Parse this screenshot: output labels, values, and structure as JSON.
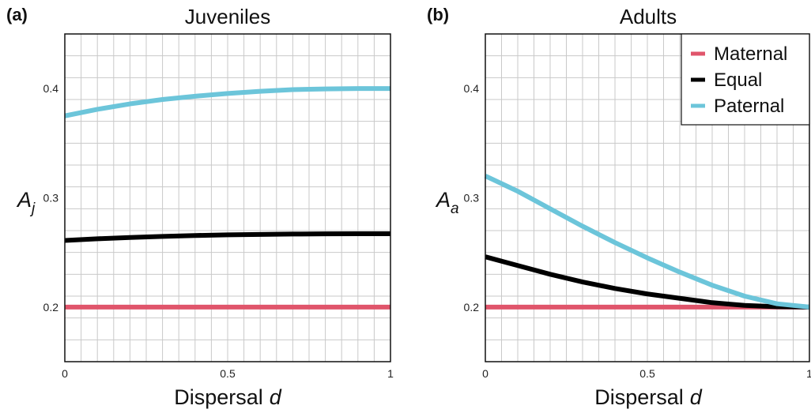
{
  "chart_data": [
    {
      "type": "line",
      "panel_label": "(a)",
      "title": "Juveniles",
      "xlabel": "Dispersal",
      "xlabel_var": "d",
      "ylabel": "A",
      "ylabel_sub": "j",
      "xlim": [
        0,
        1
      ],
      "ylim": [
        0.15,
        0.45
      ],
      "xticks": [
        {
          "value": 0,
          "label": "0"
        },
        {
          "value": 0.5,
          "label": "0.5"
        },
        {
          "value": 1,
          "label": "1"
        }
      ],
      "yticks": [
        {
          "value": 0.2,
          "label": "0.2"
        },
        {
          "value": 0.3,
          "label": "0.3"
        },
        {
          "value": 0.4,
          "label": "0.4"
        }
      ],
      "grid": true,
      "series": [
        {
          "name": "Maternal",
          "color": "#E0556B",
          "x": [
            0,
            0.1,
            0.2,
            0.3,
            0.4,
            0.5,
            0.6,
            0.7,
            0.8,
            0.9,
            1.0
          ],
          "y": [
            0.2,
            0.2,
            0.2,
            0.2,
            0.2,
            0.2,
            0.2,
            0.2,
            0.2,
            0.2,
            0.2
          ]
        },
        {
          "name": "Equal",
          "color": "#000000",
          "x": [
            0,
            0.1,
            0.2,
            0.3,
            0.4,
            0.5,
            0.6,
            0.7,
            0.8,
            0.9,
            1.0
          ],
          "y": [
            0.261,
            0.2625,
            0.2637,
            0.2647,
            0.2655,
            0.2661,
            0.2665,
            0.2668,
            0.267,
            0.2671,
            0.2671
          ]
        },
        {
          "name": "Paternal",
          "color": "#6CC5DA",
          "x": [
            0,
            0.1,
            0.2,
            0.3,
            0.4,
            0.5,
            0.6,
            0.7,
            0.8,
            0.9,
            1.0
          ],
          "y": [
            0.375,
            0.381,
            0.386,
            0.39,
            0.393,
            0.3955,
            0.3975,
            0.399,
            0.3997,
            0.4,
            0.4
          ]
        }
      ]
    },
    {
      "type": "line",
      "panel_label": "(b)",
      "title": "Adults",
      "xlabel": "Dispersal",
      "xlabel_var": "d",
      "ylabel": "A",
      "ylabel_sub": "a",
      "xlim": [
        0,
        1
      ],
      "ylim": [
        0.15,
        0.45
      ],
      "xticks": [
        {
          "value": 0,
          "label": "0"
        },
        {
          "value": 0.5,
          "label": "0.5"
        },
        {
          "value": 1,
          "label": "1"
        }
      ],
      "yticks": [
        {
          "value": 0.2,
          "label": "0.2"
        },
        {
          "value": 0.3,
          "label": "0.3"
        },
        {
          "value": 0.4,
          "label": "0.4"
        }
      ],
      "grid": true,
      "legend": {
        "position": "top-right",
        "entries": [
          "Maternal",
          "Equal",
          "Paternal"
        ]
      },
      "series": [
        {
          "name": "Maternal",
          "color": "#E0556B",
          "x": [
            0,
            0.1,
            0.2,
            0.3,
            0.4,
            0.5,
            0.6,
            0.7,
            0.8,
            0.9,
            1.0
          ],
          "y": [
            0.2,
            0.2,
            0.2,
            0.2,
            0.2,
            0.2,
            0.2,
            0.2,
            0.2,
            0.2,
            0.2
          ]
        },
        {
          "name": "Equal",
          "color": "#000000",
          "x": [
            0,
            0.1,
            0.2,
            0.3,
            0.4,
            0.5,
            0.6,
            0.7,
            0.8,
            0.9,
            1.0
          ],
          "y": [
            0.246,
            0.238,
            0.23,
            0.223,
            0.217,
            0.212,
            0.208,
            0.204,
            0.2015,
            0.2003,
            0.2
          ]
        },
        {
          "name": "Paternal",
          "color": "#6CC5DA",
          "x": [
            0,
            0.1,
            0.2,
            0.3,
            0.4,
            0.5,
            0.6,
            0.7,
            0.8,
            0.9,
            1.0
          ],
          "y": [
            0.32,
            0.306,
            0.29,
            0.274,
            0.259,
            0.245,
            0.232,
            0.22,
            0.21,
            0.203,
            0.2
          ]
        }
      ]
    }
  ]
}
